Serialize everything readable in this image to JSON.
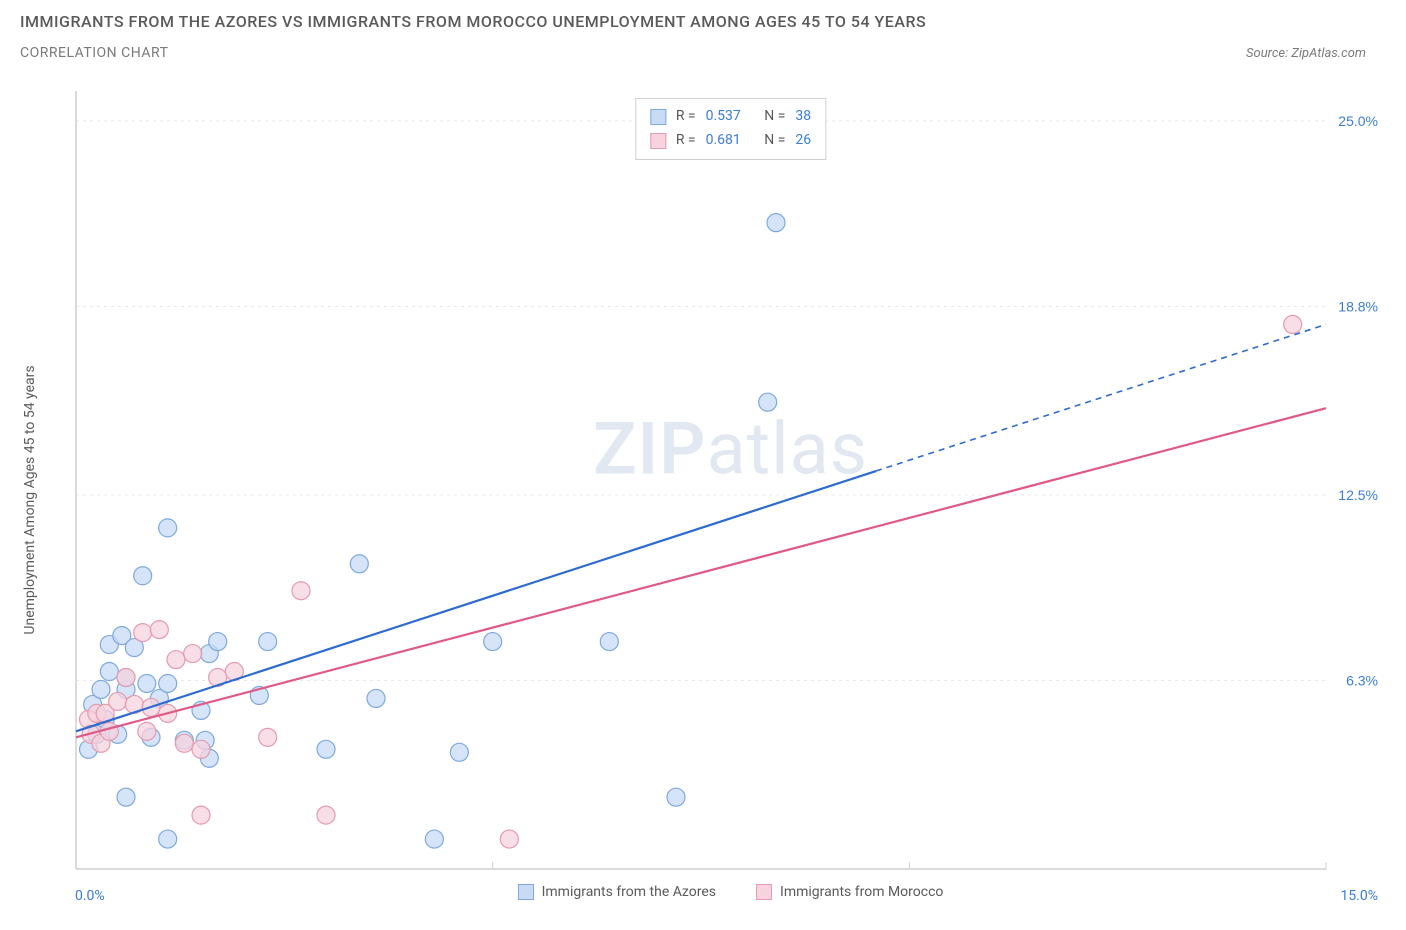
{
  "title": "IMMIGRANTS FROM THE AZORES VS IMMIGRANTS FROM MOROCCO UNEMPLOYMENT AMONG AGES 45 TO 54 YEARS",
  "subtitle": "CORRELATION CHART",
  "source": "Source: ZipAtlas.com",
  "y_axis_label": "Unemployment Among Ages 45 to 54 years",
  "watermark_a": "ZIP",
  "watermark_b": "atlas",
  "chart": {
    "type": "scatter",
    "xlim": [
      0,
      15
    ],
    "ylim": [
      0,
      26
    ],
    "x_ticks": [
      0,
      5,
      10,
      15
    ],
    "x_tick_labels": [
      "0.0%",
      "",
      "",
      "15.0%"
    ],
    "y_ticks": [
      6.3,
      12.5,
      18.8,
      25.0
    ],
    "y_tick_labels": [
      "6.3%",
      "12.5%",
      "18.8%",
      "25.0%"
    ],
    "background_color": "#ffffff",
    "grid_color": "#e8e8e8",
    "axis_color": "#cfcfcf",
    "tick_label_color": "#3b7dd8",
    "marker_radius": 9,
    "marker_stroke_width": 1.2,
    "line_width": 2.2,
    "series": [
      {
        "name": "Immigrants from the Azores",
        "color_fill": "#c7dbf5",
        "color_stroke": "#7fa9dd",
        "line_color": "#2e6bd0",
        "r": "0.537",
        "n": "38",
        "points": [
          [
            0.15,
            4.0
          ],
          [
            0.2,
            5.5
          ],
          [
            0.25,
            4.5
          ],
          [
            0.3,
            6.0
          ],
          [
            0.35,
            5.0
          ],
          [
            0.4,
            6.6
          ],
          [
            0.4,
            7.5
          ],
          [
            0.5,
            4.5
          ],
          [
            0.55,
            7.8
          ],
          [
            0.6,
            6.0
          ],
          [
            0.6,
            2.4
          ],
          [
            0.6,
            6.4
          ],
          [
            0.7,
            7.4
          ],
          [
            0.8,
            9.8
          ],
          [
            0.85,
            6.2
          ],
          [
            0.9,
            4.4
          ],
          [
            1.0,
            5.7
          ],
          [
            1.1,
            6.2
          ],
          [
            1.1,
            11.4
          ],
          [
            1.1,
            1.0
          ],
          [
            1.3,
            4.3
          ],
          [
            1.5,
            5.3
          ],
          [
            1.55,
            4.3
          ],
          [
            1.6,
            3.7
          ],
          [
            1.6,
            7.2
          ],
          [
            1.7,
            7.6
          ],
          [
            2.2,
            5.8
          ],
          [
            2.3,
            7.6
          ],
          [
            3.0,
            4.0
          ],
          [
            3.4,
            10.2
          ],
          [
            3.6,
            5.7
          ],
          [
            4.3,
            1.0
          ],
          [
            4.6,
            3.9
          ],
          [
            5.0,
            7.6
          ],
          [
            6.4,
            7.6
          ],
          [
            7.2,
            2.4
          ],
          [
            8.3,
            15.6
          ],
          [
            8.4,
            21.6
          ]
        ],
        "trend": {
          "x1": 0.0,
          "y1": 4.6,
          "x2": 9.6,
          "y2": 13.3,
          "x2_ext": 15.0,
          "y2_ext": 18.2
        }
      },
      {
        "name": "Immigrants from Morocco",
        "color_fill": "#f6d3dd",
        "color_stroke": "#e59ab0",
        "line_color": "#e05a87",
        "r": "0.681",
        "n": "26",
        "points": [
          [
            0.15,
            5.0
          ],
          [
            0.18,
            4.5
          ],
          [
            0.25,
            5.2
          ],
          [
            0.3,
            4.2
          ],
          [
            0.35,
            5.2
          ],
          [
            0.4,
            4.6
          ],
          [
            0.5,
            5.6
          ],
          [
            0.6,
            6.4
          ],
          [
            0.7,
            5.5
          ],
          [
            0.8,
            7.9
          ],
          [
            0.85,
            4.6
          ],
          [
            0.9,
            5.4
          ],
          [
            1.0,
            8.0
          ],
          [
            1.1,
            5.2
          ],
          [
            1.2,
            7.0
          ],
          [
            1.3,
            4.2
          ],
          [
            1.4,
            7.2
          ],
          [
            1.5,
            4.0
          ],
          [
            1.5,
            1.8
          ],
          [
            1.7,
            6.4
          ],
          [
            1.9,
            6.6
          ],
          [
            2.3,
            4.4
          ],
          [
            2.7,
            9.3
          ],
          [
            3.0,
            1.8
          ],
          [
            5.2,
            1.0
          ],
          [
            14.6,
            18.2
          ]
        ],
        "trend": {
          "x1": 0.0,
          "y1": 4.4,
          "x2": 15.0,
          "y2": 15.4
        }
      }
    ]
  },
  "x_min_label": "0.0%",
  "x_max_label": "15.0%",
  "legend_r_label": "R =",
  "legend_n_label": "N ="
}
